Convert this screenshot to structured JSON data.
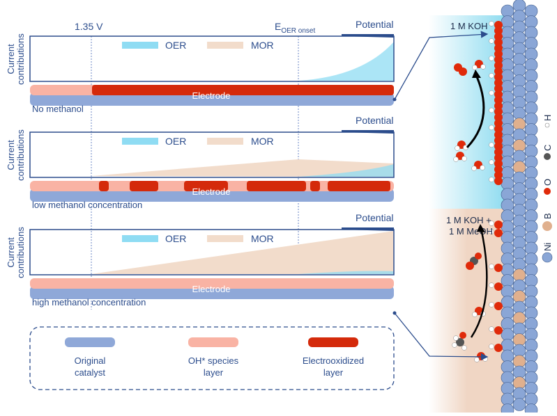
{
  "colors": {
    "axis": "#2b4c8c",
    "oer": "#8fdcf3",
    "mor": "#f2dccb",
    "original_catalyst": "#8fa8d8",
    "oh_layer": "#f9b3a4",
    "electrooxidized": "#d42a0b",
    "koh_bg": "#8fdcf0",
    "meoh_bg": "#f0d6c4",
    "ni": "#8aa6d6",
    "b": "#e0b08e",
    "o": "#e02a0a",
    "c": "#555555",
    "h": "#ffffff"
  },
  "axis_labels": {
    "v135": "1.35 V",
    "eoer_main": "E",
    "eoer_sub": "OER onset",
    "potential": "Potential",
    "ylabel_line1": "Current",
    "ylabel_line2": "contributions"
  },
  "legend_inline": {
    "oer": "OER",
    "mor": "MOR"
  },
  "panels": [
    {
      "electrode_label": "Electrode",
      "condition": "No methanol"
    },
    {
      "electrode_label": "Electrode",
      "condition": "low methanol concentration"
    },
    {
      "electrode_label": "Electrode",
      "condition": "high methanol concentration"
    }
  ],
  "legend_box": {
    "original": [
      "Original",
      "catalyst"
    ],
    "oh": [
      "OH* species",
      "layer"
    ],
    "oxidized": [
      "Electrooxidized",
      "layer"
    ]
  },
  "right": {
    "koh": "1 M KOH",
    "meoh_line1": "1 M KOH +",
    "meoh_line2": "1 M MeOH",
    "elements": {
      "h": "H",
      "c": "C",
      "o": "O",
      "b": "B",
      "ni": "Ni"
    }
  }
}
